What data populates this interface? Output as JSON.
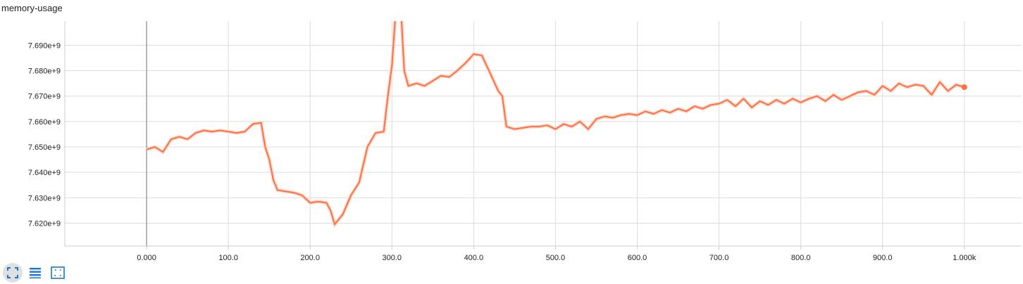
{
  "card": {
    "title": "memory-usage"
  },
  "toolbar": {
    "buttons": [
      {
        "icon": "fullscreen-icon",
        "active": true
      },
      {
        "icon": "list-icon",
        "active": false
      },
      {
        "icon": "fit-domain-icon",
        "active": false
      }
    ],
    "icon_color": "#1976d2"
  },
  "chart_data": {
    "type": "line",
    "title": "memory-usage",
    "xlabel": "",
    "ylabel": "",
    "xlim": [
      -100,
      1070
    ],
    "ylim": [
      7611000000.0,
      7699500000.0
    ],
    "grid": true,
    "x_ticks": [
      {
        "value": 0,
        "label": "0.000"
      },
      {
        "value": 100,
        "label": "100.0"
      },
      {
        "value": 200,
        "label": "200.0"
      },
      {
        "value": 300,
        "label": "300.0"
      },
      {
        "value": 400,
        "label": "400.0"
      },
      {
        "value": 500,
        "label": "500.0"
      },
      {
        "value": 600,
        "label": "600.0"
      },
      {
        "value": 700,
        "label": "700.0"
      },
      {
        "value": 800,
        "label": "800.0"
      },
      {
        "value": 900,
        "label": "900.0"
      },
      {
        "value": 1000,
        "label": "1.000k"
      }
    ],
    "y_ticks": [
      {
        "value": 7620000000.0,
        "label": "7.620e+9"
      },
      {
        "value": 7630000000.0,
        "label": "7.630e+9"
      },
      {
        "value": 7640000000.0,
        "label": "7.640e+9"
      },
      {
        "value": 7650000000.0,
        "label": "7.650e+9"
      },
      {
        "value": 7660000000.0,
        "label": "7.660e+9"
      },
      {
        "value": 7670000000.0,
        "label": "7.670e+9"
      },
      {
        "value": 7680000000.0,
        "label": "7.680e+9"
      },
      {
        "value": 7690000000.0,
        "label": "7.690e+9"
      }
    ],
    "line_color": "#ff7043",
    "raw_color": "#ffd8cc",
    "series": [
      {
        "x": [
          0,
          10,
          20,
          30,
          40,
          50,
          60,
          70,
          80,
          90,
          100,
          110,
          120,
          130,
          140,
          145,
          150,
          155,
          160,
          170,
          180,
          190,
          200,
          210,
          220,
          225,
          230,
          240,
          250,
          260,
          270,
          280,
          290,
          295,
          300,
          305,
          310,
          315,
          320,
          330,
          340,
          350,
          360,
          370,
          380,
          390,
          400,
          410,
          420,
          430,
          435,
          440,
          450,
          460,
          470,
          480,
          490,
          500,
          510,
          520,
          530,
          540,
          550,
          560,
          570,
          580,
          590,
          600,
          610,
          620,
          630,
          640,
          650,
          660,
          670,
          680,
          690,
          700,
          710,
          720,
          730,
          740,
          750,
          760,
          770,
          780,
          790,
          800,
          810,
          820,
          830,
          840,
          850,
          860,
          870,
          880,
          890,
          900,
          910,
          920,
          930,
          940,
          950,
          960,
          970,
          980,
          990,
          1000
        ],
        "y": [
          7649000000.0,
          7650000000.0,
          7648000000.0,
          7653000000.0,
          7654000000.0,
          7653000000.0,
          7655500000.0,
          7656500000.0,
          7656000000.0,
          7656500000.0,
          7656000000.0,
          7655500000.0,
          7656000000.0,
          7659000000.0,
          7659500000.0,
          7650000000.0,
          7645000000.0,
          7637000000.0,
          7633000000.0,
          7632500000.0,
          7632000000.0,
          7631000000.0,
          7628000000.0,
          7628500000.0,
          7628000000.0,
          7625000000.0,
          7619500000.0,
          7623500000.0,
          7631000000.0,
          7636000000.0,
          7650000000.0,
          7655500000.0,
          7656000000.0,
          7670000000.0,
          7682000000.0,
          7705000000.0,
          7710000000.0,
          7680000000.0,
          7674000000.0,
          7675000000.0,
          7674000000.0,
          7676000000.0,
          7678000000.0,
          7677500000.0,
          7680000000.0,
          7683000000.0,
          7686500000.0,
          7686000000.0,
          7679000000.0,
          7672000000.0,
          7670000000.0,
          7658000000.0,
          7657000000.0,
          7657500000.0,
          7658000000.0,
          7658000000.0,
          7658500000.0,
          7657000000.0,
          7659000000.0,
          7658000000.0,
          7660000000.0,
          7657000000.0,
          7661000000.0,
          7662000000.0,
          7661500000.0,
          7662500000.0,
          7663000000.0,
          7662500000.0,
          7664000000.0,
          7663000000.0,
          7664500000.0,
          7663500000.0,
          7665000000.0,
          7664000000.0,
          7666000000.0,
          7665000000.0,
          7666500000.0,
          7667000000.0,
          7668500000.0,
          7666000000.0,
          7669000000.0,
          7665500000.0,
          7668000000.0,
          7666500000.0,
          7668500000.0,
          7667000000.0,
          7669000000.0,
          7667500000.0,
          7669000000.0,
          7670000000.0,
          7668000000.0,
          7670500000.0,
          7668500000.0,
          7670000000.0,
          7671500000.0,
          7672000000.0,
          7670500000.0,
          7674000000.0,
          7672000000.0,
          7675000000.0,
          7673500000.0,
          7674500000.0,
          7674000000.0,
          7670500000.0,
          7675500000.0,
          7672000000.0,
          7674500000.0,
          7673500000.0
        ]
      }
    ]
  }
}
